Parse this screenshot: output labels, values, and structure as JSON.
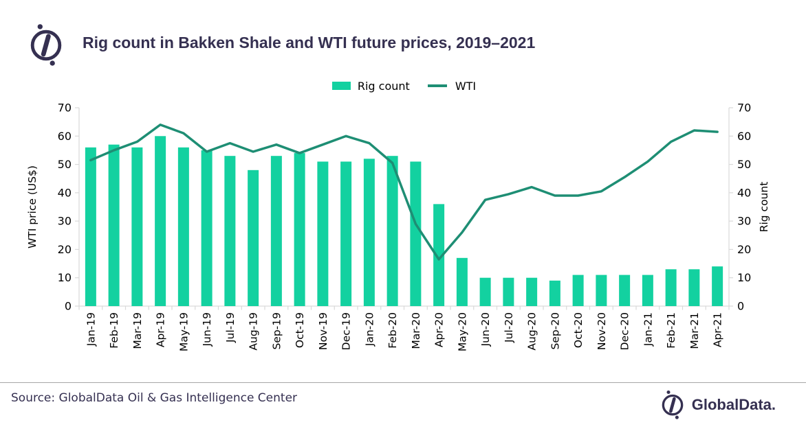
{
  "header": {
    "title": "Rig count in Bakken Shale and WTI future prices, 2019–2021",
    "logo_icon": "globaldata-compass-icon"
  },
  "chart_data": {
    "type": "bar+line combo",
    "title": "Rig count in Bakken Shale and WTI future prices, 2019–2021",
    "categories": [
      "Jan-19",
      "Feb-19",
      "Mar-19",
      "Apr-19",
      "May-19",
      "Jun-19",
      "Jul-19",
      "Aug-19",
      "Sep-19",
      "Oct-19",
      "Nov-19",
      "Dec-19",
      "Jan-20",
      "Feb-20",
      "Mar-20",
      "Apr-20",
      "May-20",
      "Jun-20",
      "Jul-20",
      "Aug-20",
      "Sep-20",
      "Oct-20",
      "Nov-20",
      "Dec-20",
      "Jan-21",
      "Feb-21",
      "Mar-21",
      "Apr-21"
    ],
    "series": [
      {
        "name": "Rig count",
        "type": "bar",
        "axis": "right",
        "color": "#13d1a0",
        "values": [
          56,
          57,
          56,
          60,
          56,
          55,
          53,
          48,
          53,
          54,
          51,
          51,
          52,
          53,
          51,
          36,
          17,
          10,
          10,
          10,
          9,
          11,
          11,
          11,
          11,
          13,
          13,
          14
        ]
      },
      {
        "name": "WTI",
        "type": "line",
        "axis": "left",
        "color": "#1e8e74",
        "values": [
          51.5,
          55,
          58,
          64,
          61,
          54.5,
          57.5,
          54.5,
          57,
          54,
          57,
          60,
          57.5,
          50.5,
          29,
          16.5,
          26,
          37.5,
          39.5,
          42,
          39,
          39,
          40.5,
          45.5,
          51,
          58,
          62,
          61.5
        ]
      }
    ],
    "left_axis": {
      "label": "WTI price (US$)",
      "min": 0,
      "max": 70,
      "tick_step": 10
    },
    "right_axis": {
      "label": "Rig count",
      "min": 0,
      "max": 70,
      "tick_step": 10
    },
    "grid": false,
    "legend_position": "top-center"
  },
  "footer": {
    "source": "Source: GlobalData Oil & Gas Intelligence Center",
    "brand_text": "GlobalData.",
    "brand_icon": "globaldata-compass-icon"
  },
  "colors": {
    "bar": "#13d1a0",
    "line": "#1e8e74",
    "navy": "#353051",
    "axis": "#d9d9d9",
    "tick_text": "#000000",
    "divider": "#a6a6a6"
  }
}
